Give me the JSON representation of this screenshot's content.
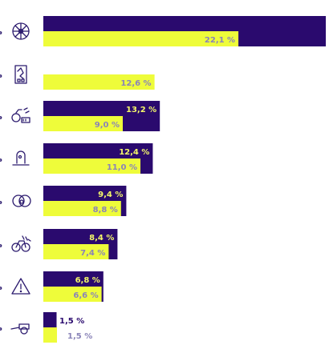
{
  "chart_data": {
    "type": "bar",
    "orientation": "horizontal",
    "categories": [
      {
        "icon": "bicycle-wheel-icon"
      },
      {
        "icon": "tablet-device-icon"
      },
      {
        "icon": "e-bike-battery-icon"
      },
      {
        "icon": "bike-lock-icon"
      },
      {
        "icon": "person-face-icon"
      },
      {
        "icon": "bicycle-wind-icon"
      },
      {
        "icon": "warning-triangle-icon"
      },
      {
        "icon": "bicycle-trailer-icon"
      }
    ],
    "series": [
      {
        "color": "#2a0a6e",
        "values": [
          null,
          null,
          13.2,
          12.4,
          9.4,
          8.4,
          6.8,
          1.5
        ]
      },
      {
        "color": "#eefc3a",
        "values": [
          22.1,
          12.6,
          9.0,
          11.0,
          8.8,
          7.4,
          6.6,
          1.5
        ]
      }
    ],
    "series_bar_values": [
      32.0,
      null,
      13.2,
      12.4,
      9.4,
      8.4,
      6.8,
      1.5
    ],
    "labels": {
      "series_1": [
        null,
        null,
        "13,2 %",
        "12,4 %",
        "9,4 %",
        "8,4 %",
        "6,8 %",
        "1,5 %"
      ],
      "series_2": [
        "22,1 %",
        "12,6 %",
        "9,0 %",
        "11,0 %",
        "8,8 %",
        "7,4 %",
        "6,6 %",
        "1,5 %"
      ]
    },
    "label_colors": {
      "on_dark": "#f3f76a",
      "on_light": "#8a84b8",
      "outside_dark": "#2a0a6e"
    },
    "xlim": [
      0,
      32
    ],
    "grid": false,
    "legend": "none"
  }
}
